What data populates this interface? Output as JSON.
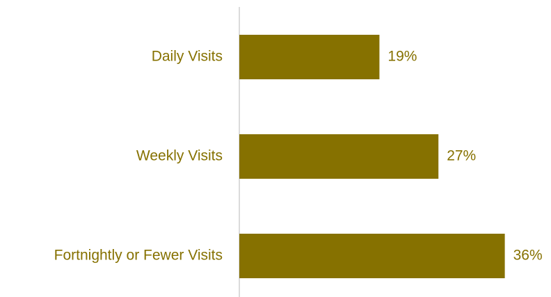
{
  "chart_data": {
    "type": "barh",
    "categories": [
      "Daily Visits",
      "Weekly Visits",
      "Fortnightly or Fewer Visits"
    ],
    "values": [
      19,
      27,
      36
    ],
    "value_labels": [
      "19%",
      "27%",
      "36%"
    ],
    "color": "#867100"
  }
}
